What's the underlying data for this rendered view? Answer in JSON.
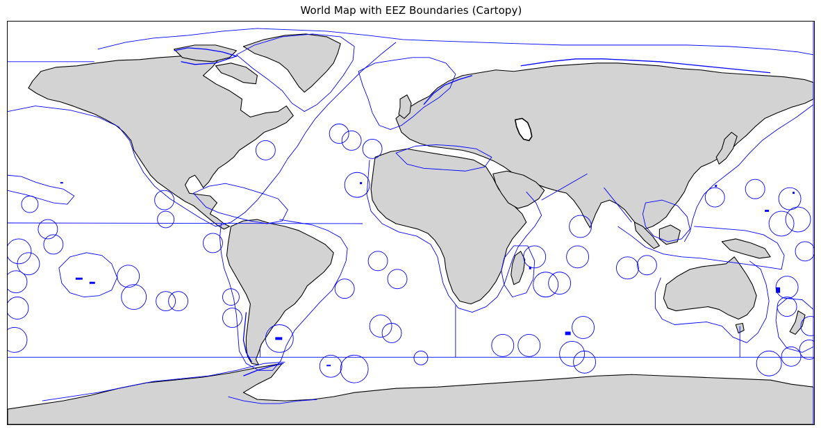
{
  "figure": {
    "title": "World Map with EEZ Boundaries (Cartopy)"
  },
  "map": {
    "projection": "PlateCarree",
    "extent": {
      "lon": [
        -180,
        180
      ],
      "lat": [
        -90,
        90
      ]
    },
    "colors": {
      "land_fill": "#d3d3d3",
      "coastline": "#000000",
      "eez_boundary": "#0000ff",
      "ocean": "#ffffff",
      "frame": "#000000"
    },
    "layers": [
      "land",
      "coastline",
      "eez-boundaries",
      "lakes"
    ]
  }
}
